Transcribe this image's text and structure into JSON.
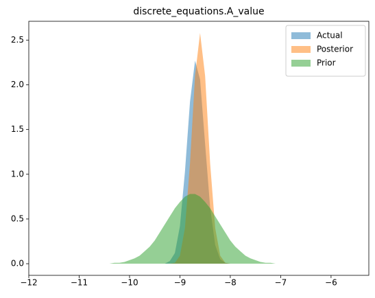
{
  "chart_data": {
    "type": "area",
    "title": "discrete_equations.A_value",
    "x": [
      -10.5,
      -10.4,
      -10.3,
      -10.2,
      -10.1,
      -10.0,
      -9.9,
      -9.8,
      -9.7,
      -9.6,
      -9.5,
      -9.4,
      -9.3,
      -9.2,
      -9.1,
      -9.0,
      -8.9,
      -8.8,
      -8.7,
      -8.6,
      -8.5,
      -8.4,
      -8.3,
      -8.2,
      -8.1,
      -8.0,
      -7.9,
      -7.8,
      -7.7,
      -7.6,
      -7.5,
      -7.4,
      -7.3,
      -7.2,
      -7.1,
      -7.0
    ],
    "series": [
      {
        "name": "Actual",
        "color": "#1f77b4",
        "values": [
          0,
          0,
          0,
          0,
          0,
          0,
          0,
          0,
          0,
          0,
          0,
          0,
          0,
          0.03,
          0.12,
          0.42,
          1.03,
          1.81,
          2.27,
          2.06,
          1.34,
          0.63,
          0.21,
          0.05,
          0.01,
          0,
          0,
          0,
          0,
          0,
          0,
          0,
          0,
          0,
          0,
          0
        ]
      },
      {
        "name": "Posterior",
        "color": "#ff7f0e",
        "values": [
          0,
          0,
          0,
          0,
          0,
          0,
          0,
          0,
          0,
          0,
          0,
          0,
          0,
          0,
          0.01,
          0.09,
          0.4,
          1.12,
          2.1,
          2.58,
          2.1,
          1.12,
          0.4,
          0.09,
          0.01,
          0,
          0,
          0,
          0,
          0,
          0,
          0,
          0,
          0,
          0,
          0
        ]
      },
      {
        "name": "Prior",
        "color": "#2ca02c",
        "values": [
          0,
          0,
          0.01,
          0.01,
          0.02,
          0.04,
          0.06,
          0.09,
          0.14,
          0.19,
          0.26,
          0.35,
          0.44,
          0.53,
          0.62,
          0.69,
          0.75,
          0.78,
          0.78,
          0.75,
          0.69,
          0.62,
          0.53,
          0.44,
          0.35,
          0.26,
          0.19,
          0.14,
          0.09,
          0.06,
          0.04,
          0.02,
          0.01,
          0.01,
          0,
          0
        ]
      }
    ],
    "alpha": 0.5,
    "xlim": [
      -12,
      -5.25
    ],
    "ylim": [
      -0.13,
      2.71
    ],
    "xticks": [
      {
        "value": -12,
        "label": "−12"
      },
      {
        "value": -11,
        "label": "−11"
      },
      {
        "value": -10,
        "label": "−10"
      },
      {
        "value": -9,
        "label": "−9"
      },
      {
        "value": -8,
        "label": "−8"
      },
      {
        "value": -7,
        "label": "−7"
      },
      {
        "value": -6,
        "label": "−6"
      }
    ],
    "yticks": [
      {
        "value": 0,
        "label": "0.0"
      },
      0.5,
      {
        "value": 1,
        "label": "1.0"
      },
      1.5,
      {
        "value": 2,
        "label": "2.0"
      },
      2.5
    ],
    "grid": false,
    "legend": "upper right"
  }
}
